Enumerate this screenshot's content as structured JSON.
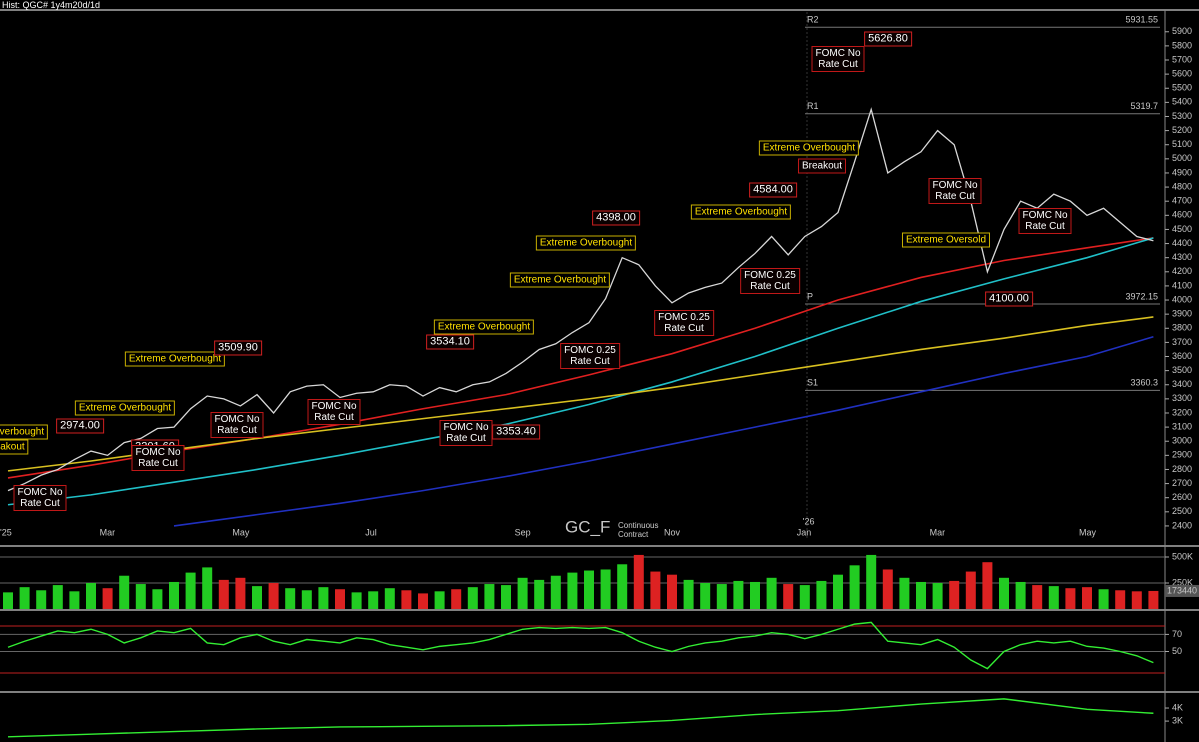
{
  "header": "Hist: QGC# 1y4m20d/1d",
  "chart_data": [
    {
      "type": "line",
      "title": "GC_F",
      "subtitle": "Continuous\nContract",
      "year_label": "'26",
      "categories": [
        "'25",
        null,
        null,
        null,
        null,
        null,
        "Mar",
        null,
        null,
        null,
        null,
        null,
        null,
        null,
        "May",
        null,
        null,
        null,
        null,
        null,
        null,
        null,
        "Jul",
        null,
        null,
        null,
        null,
        null,
        null,
        null,
        null,
        "Sep",
        null,
        null,
        null,
        null,
        null,
        null,
        null,
        null,
        "Nov",
        null,
        null,
        null,
        null,
        null,
        null,
        null,
        "Jan",
        null,
        null,
        null,
        null,
        null,
        null,
        null,
        "Mar",
        null,
        null,
        null,
        null,
        null,
        null,
        null,
        null,
        "May",
        null,
        null,
        null,
        null
      ],
      "values": [
        2650,
        2700,
        2760,
        2800,
        2870,
        2930,
        2900,
        2990,
        3020,
        3090,
        3100,
        3230,
        3320,
        3300,
        3250,
        3330,
        3200,
        3350,
        3390,
        3400,
        3310,
        3340,
        3350,
        3400,
        3390,
        3320,
        3380,
        3350,
        3400,
        3420,
        3480,
        3560,
        3650,
        3690,
        3770,
        3840,
        4010,
        4300,
        4250,
        4100,
        3980,
        4050,
        4090,
        4120,
        4230,
        4330,
        4450,
        4320,
        4450,
        4520,
        4620,
        4980,
        5350,
        4900,
        4980,
        5050,
        5200,
        5100,
        4700,
        4200,
        4500,
        4700,
        4650,
        4750,
        4700,
        4600,
        4650,
        4550,
        4450,
        4420
      ],
      "color": "#d8d8d8",
      "overlays": [
        {
          "color": "#e02020",
          "x": [
            0,
            5,
            10,
            15,
            20,
            25,
            30,
            35,
            40,
            45,
            50,
            55,
            60,
            65,
            69
          ],
          "values": [
            2740,
            2830,
            2930,
            3020,
            3120,
            3230,
            3330,
            3470,
            3620,
            3800,
            4000,
            4160,
            4280,
            4370,
            4440
          ]
        },
        {
          "color": "#20c0c8",
          "x": [
            0,
            5,
            10,
            15,
            20,
            25,
            30,
            35,
            40,
            45,
            50,
            55,
            60,
            65,
            69
          ],
          "values": [
            2550,
            2620,
            2710,
            2800,
            2900,
            3010,
            3120,
            3260,
            3420,
            3600,
            3800,
            3990,
            4150,
            4300,
            4440
          ]
        },
        {
          "color": "#d8c020",
          "x": [
            0,
            5,
            10,
            15,
            20,
            25,
            30,
            35,
            40,
            45,
            50,
            55,
            60,
            65,
            69
          ],
          "values": [
            2790,
            2860,
            2940,
            3020,
            3090,
            3160,
            3230,
            3300,
            3380,
            3470,
            3560,
            3650,
            3730,
            3820,
            3880
          ]
        },
        {
          "color": "#2030c0",
          "x": [
            10,
            15,
            20,
            25,
            30,
            35,
            40,
            45,
            50,
            55,
            60,
            65,
            69
          ],
          "values": [
            2400,
            2480,
            2560,
            2650,
            2750,
            2860,
            2980,
            3100,
            3220,
            3350,
            3480,
            3600,
            3740
          ]
        }
      ],
      "levels": [
        {
          "label": "R2",
          "value": 5931.55
        },
        {
          "label": "R1",
          "value": 5319.7
        },
        {
          "label": "P",
          "value": 3972.15
        },
        {
          "label": "S1",
          "value": 3360.3
        }
      ],
      "annotations": [
        {
          "text": "Overbought",
          "kind": "signal"
        },
        {
          "text": "reakout",
          "kind": "signal"
        },
        {
          "text": "2974.00",
          "kind": "price"
        },
        {
          "text": "FOMC No\nRate Cut",
          "kind": "event"
        },
        {
          "text": "Extreme Overbought",
          "kind": "signal"
        },
        {
          "text": "3201.60",
          "kind": "price"
        },
        {
          "text": "FOMC No\nRate Cut",
          "kind": "event"
        },
        {
          "text": "Extreme Overbought",
          "kind": "signal"
        },
        {
          "text": "3509.90",
          "kind": "price"
        },
        {
          "text": "FOMC No\nRate Cut",
          "kind": "event"
        },
        {
          "text": "FOMC No\nRate Cut",
          "kind": "event"
        },
        {
          "text": "3534.10",
          "kind": "price"
        },
        {
          "text": "Extreme Overbought",
          "kind": "signal"
        },
        {
          "text": "FOMC No\nRate Cut",
          "kind": "event"
        },
        {
          "text": "3353.40",
          "kind": "price"
        },
        {
          "text": "Extreme Overbought",
          "kind": "signal"
        },
        {
          "text": "FOMC 0.25\nRate Cut",
          "kind": "event"
        },
        {
          "text": "Extreme Overbought",
          "kind": "signal"
        },
        {
          "text": "4398.00",
          "kind": "price"
        },
        {
          "text": "FOMC 0.25\nRate Cut",
          "kind": "event"
        },
        {
          "text": "Extreme Overbought",
          "kind": "signal"
        },
        {
          "text": "4584.00",
          "kind": "price"
        },
        {
          "text": "FOMC 0.25\nRate Cut",
          "kind": "event"
        },
        {
          "text": "Breakout",
          "kind": "event"
        },
        {
          "text": "Extreme Overbought",
          "kind": "signal"
        },
        {
          "text": "FOMC No\nRate Cut",
          "kind": "event"
        },
        {
          "text": "5626.80",
          "kind": "price"
        },
        {
          "text": "FOMC No\nRate Cut",
          "kind": "event"
        },
        {
          "text": "Extreme Oversold",
          "kind": "signal"
        },
        {
          "text": "FOMC No\nRate Cut",
          "kind": "event"
        },
        {
          "text": "4100.00",
          "kind": "price"
        }
      ],
      "ylim": [
        2265,
        6040
      ],
      "yticks": [
        2400,
        2500,
        2600,
        2700,
        2800,
        2900,
        3000,
        3100,
        3200,
        3300,
        3400,
        3500,
        3600,
        3700,
        3800,
        3900,
        4000,
        4100,
        4200,
        4300,
        4400,
        4500,
        4600,
        4700,
        4800,
        4900,
        5000,
        5100,
        5200,
        5300,
        5400,
        5500,
        5600,
        5700,
        5800,
        5900
      ]
    },
    {
      "type": "bar",
      "up_color": "#22cc22",
      "down_color": "#dd2222",
      "values": [
        160000,
        210000,
        180000,
        230000,
        170000,
        250000,
        200000,
        320000,
        240000,
        190000,
        260000,
        350000,
        400000,
        280000,
        300000,
        220000,
        250000,
        200000,
        180000,
        210000,
        190000,
        160000,
        170000,
        200000,
        180000,
        150000,
        170000,
        190000,
        210000,
        240000,
        230000,
        300000,
        280000,
        320000,
        350000,
        370000,
        380000,
        430000,
        520000,
        360000,
        330000,
        280000,
        250000,
        240000,
        270000,
        260000,
        300000,
        240000,
        230000,
        270000,
        330000,
        420000,
        520000,
        380000,
        300000,
        260000,
        250000,
        270000,
        360000,
        450000,
        300000,
        260000,
        230000,
        220000,
        200000,
        210000,
        190000,
        180000,
        170000,
        173440
      ],
      "ylim": [
        0,
        577000
      ],
      "yticks": [
        {
          "value": 500000,
          "label": "500K"
        },
        {
          "value": 250000,
          "label": "250K"
        }
      ]
    },
    {
      "type": "line",
      "color": "#33ee33",
      "values": [
        55,
        62,
        68,
        74,
        72,
        76,
        70,
        60,
        66,
        74,
        72,
        77,
        60,
        58,
        66,
        70,
        62,
        58,
        64,
        62,
        60,
        66,
        64,
        58,
        55,
        52,
        56,
        58,
        60,
        64,
        70,
        76,
        78,
        77,
        78,
        77,
        78,
        72,
        62,
        55,
        50,
        56,
        60,
        62,
        66,
        68,
        72,
        70,
        65,
        70,
        76,
        82,
        84,
        62,
        60,
        58,
        64,
        55,
        40,
        30,
        50,
        58,
        62,
        60,
        62,
        56,
        54,
        50,
        45,
        37
      ],
      "ylim": [
        5,
        95
      ],
      "yticks": [
        70,
        50
      ]
    },
    {
      "type": "line",
      "color": "#33ee33",
      "x": [
        0,
        5,
        10,
        15,
        20,
        25,
        30,
        35,
        40,
        45,
        50,
        55,
        60,
        65,
        69
      ],
      "values": [
        1800,
        2000,
        2200,
        2400,
        2550,
        2600,
        2650,
        2750,
        3050,
        3500,
        3800,
        4300,
        4700,
        3900,
        3600
      ],
      "ylim": [
        1400,
        5150
      ],
      "yticks": [
        {
          "value": 4000,
          "label": "4K"
        },
        {
          "value": 3000,
          "label": "3K"
        }
      ]
    }
  ]
}
